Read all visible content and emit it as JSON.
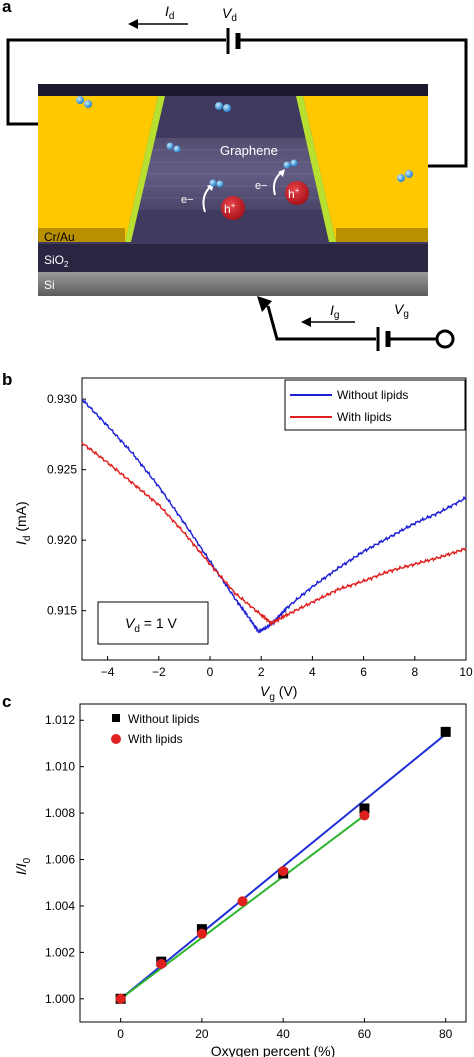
{
  "panels": {
    "a": {
      "letter": "a",
      "drain_current": "I",
      "drain_current_sub": "d",
      "drain_voltage": "V",
      "drain_voltage_sub": "d",
      "gate_current": "I",
      "gate_current_sub": "g",
      "gate_voltage": "V",
      "gate_voltage_sub": "g",
      "graphene_label": "Graphene",
      "electron_label": "e−",
      "hole_label": "h",
      "hole_sup": "+",
      "electrode_label": "Cr/Au",
      "oxide_label": "SiO",
      "oxide_sub": "2",
      "substrate_label": "Si"
    },
    "b": {
      "letter": "b"
    },
    "c": {
      "letter": "c"
    }
  },
  "colors": {
    "without_lipids_b": "#1f1fd6",
    "with_lipids_b": "#e01f1f",
    "without_lipids_c": "#000000",
    "with_lipids_c": "#e01f1f",
    "fit_without": "#1f2fd6",
    "fit_with": "#2db52d",
    "gold": "#ffc800",
    "channel": "#3f3a5e"
  },
  "chart_data": [
    {
      "type": "line",
      "xlabel": "V",
      "xlabel_sub": "g",
      "xlabel_unit": "(V)",
      "ylabel": "I",
      "ylabel_sub": "d",
      "ylabel_unit": "(mA)",
      "xlim": [
        -5,
        10
      ],
      "ylim": [
        0.9115,
        0.9315
      ],
      "xticks": [
        -4,
        -2,
        0,
        2,
        4,
        6,
        8,
        10
      ],
      "xtick_labels": [
        "−4",
        "−2",
        "0",
        "2",
        "4",
        "6",
        "8",
        "10"
      ],
      "yticks": [
        0.915,
        0.92,
        0.925,
        0.93
      ],
      "ytick_labels": [
        "0.915",
        "0.920",
        "0.925",
        "0.930"
      ],
      "legend_position": "top-right",
      "annotation": {
        "prefix": "V",
        "sub": "d",
        "suffix": " = 1 V"
      },
      "series": [
        {
          "name": "Without lipids",
          "x": [
            -5,
            -4,
            -3,
            -2,
            -1,
            0,
            1,
            1.6,
            1.9,
            2.2,
            2.6,
            3,
            4,
            5,
            6,
            7,
            8,
            9,
            10
          ],
          "y": [
            0.93,
            0.9281,
            0.9261,
            0.9238,
            0.9212,
            0.9185,
            0.9158,
            0.9143,
            0.9135,
            0.9138,
            0.9144,
            0.9152,
            0.9167,
            0.918,
            0.9192,
            0.9202,
            0.9212,
            0.922,
            0.923
          ]
        },
        {
          "name": "With lipids",
          "x": [
            -5,
            -4,
            -3,
            -2,
            -1,
            0,
            1,
            2,
            2.4,
            3,
            4,
            5,
            6,
            7,
            8,
            9,
            10
          ],
          "y": [
            0.9269,
            0.9255,
            0.924,
            0.9225,
            0.9205,
            0.9183,
            0.9162,
            0.9147,
            0.9141,
            0.9147,
            0.9156,
            0.9165,
            0.9171,
            0.9178,
            0.9183,
            0.9188,
            0.9194
          ]
        }
      ]
    },
    {
      "type": "scatter",
      "xlabel": "Oxygen percent (%)",
      "ylabel": "I/I",
      "ylabel_sub": "0",
      "xlim": [
        -10,
        85
      ],
      "ylim": [
        0.999,
        1.0127
      ],
      "xticks": [
        0,
        20,
        40,
        60,
        80
      ],
      "xtick_labels": [
        "0",
        "20",
        "40",
        "60",
        "80"
      ],
      "yticks": [
        1.0,
        1.002,
        1.004,
        1.006,
        1.008,
        1.01,
        1.012
      ],
      "ytick_labels": [
        "1.000",
        "1.002",
        "1.004",
        "1.006",
        "1.008",
        "1.010",
        "1.012"
      ],
      "legend_position": "top-left",
      "series": [
        {
          "name": "Without lipids",
          "marker": "square",
          "x": [
            0,
            10,
            20,
            40,
            60,
            80
          ],
          "y": [
            1.0,
            1.0016,
            1.003,
            1.0054,
            1.0082,
            1.0115
          ]
        },
        {
          "name": "With lipids",
          "marker": "circle",
          "x": [
            0,
            10,
            20,
            30,
            40,
            60
          ],
          "y": [
            1.0,
            1.0015,
            1.0028,
            1.0042,
            1.0055,
            1.0079
          ]
        }
      ],
      "fits": [
        {
          "series": "Without lipids",
          "x": [
            0,
            80
          ],
          "y": [
            1.0,
            1.0114
          ]
        },
        {
          "series": "With lipids",
          "x": [
            0,
            60
          ],
          "y": [
            1.0,
            1.0079
          ]
        }
      ]
    }
  ]
}
